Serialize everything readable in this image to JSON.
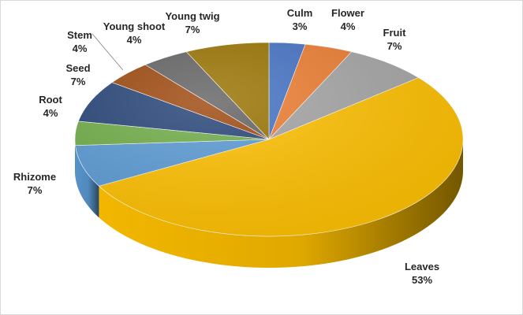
{
  "chart_data": {
    "type": "pie",
    "style": "3d",
    "title": "",
    "legend": "none",
    "slices": [
      {
        "label": "Culm",
        "value": 3,
        "value_label": "3%",
        "color": "#4472C4"
      },
      {
        "label": "Flower",
        "value": 4,
        "value_label": "4%",
        "color": "#ED7D31"
      },
      {
        "label": "Fruit",
        "value": 7,
        "value_label": "7%",
        "color": "#A5A5A5"
      },
      {
        "label": "Leaves",
        "value": 53,
        "value_label": "53%",
        "color": "#FFC000"
      },
      {
        "label": "Rhizome",
        "value": 7,
        "value_label": "7%",
        "color": "#5B9BD5"
      },
      {
        "label": "Root",
        "value": 4,
        "value_label": "4%",
        "color": "#70AD47"
      },
      {
        "label": "Seed",
        "value": 7,
        "value_label": "7%",
        "color": "#264478"
      },
      {
        "label": "Stem",
        "value": 4,
        "value_label": "4%",
        "color": "#9E480E"
      },
      {
        "label": "Young shoot",
        "value": 4,
        "value_label": "4%",
        "color": "#636363"
      },
      {
        "label": "Young twig",
        "value": 7,
        "value_label": "7%",
        "color": "#997300"
      }
    ]
  }
}
